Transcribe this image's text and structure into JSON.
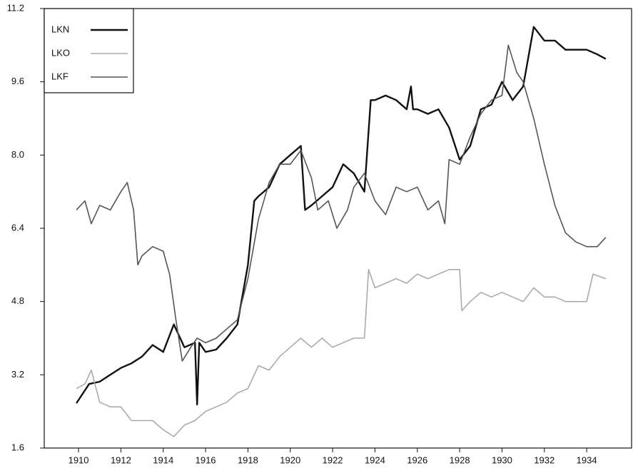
{
  "chart_data": {
    "type": "line",
    "xlim": [
      1908.38,
      1936.12
    ],
    "xticks": [
      1910,
      1912,
      1914,
      1916,
      1918,
      1920,
      1922,
      1924,
      1926,
      1928,
      1930,
      1932,
      1934
    ],
    "ylim": [
      1.6,
      11.2
    ],
    "yticks": [
      1.6,
      3.2,
      4.8,
      6.4,
      {
        "value": 8,
        "label": "8.0"
      },
      9.6,
      11.2
    ],
    "grid": false,
    "legend": "upper-left",
    "series": [
      {
        "name": "LKN",
        "color": "#111111",
        "x": [
          1909.9,
          1910.5,
          1911,
          1911.5,
          1912,
          1912.5,
          1913,
          1913.5,
          1914,
          1914.5,
          1915,
          1915.5,
          1915.6,
          1915.7,
          1916,
          1916.5,
          1917,
          1917.5,
          1918,
          1918.3,
          1918.5,
          1919,
          1919.5,
          1920,
          1920.5,
          1920.7,
          1921,
          1921.5,
          1922,
          1922.5,
          1923,
          1923.5,
          1923.8,
          1924,
          1924.5,
          1925,
          1925.5,
          1925.7,
          1925.8,
          1926,
          1926.5,
          1927,
          1927.5,
          1928,
          1928.5,
          1929,
          1929.5,
          1930,
          1930.5,
          1931,
          1931.5,
          1932,
          1932.5,
          1933,
          1933.5,
          1934,
          1934.5,
          1934.9
        ],
        "values": [
          2.58,
          3.0,
          3.05,
          3.2,
          3.35,
          3.45,
          3.6,
          3.85,
          3.7,
          4.3,
          3.8,
          3.9,
          2.55,
          3.9,
          3.7,
          3.75,
          4.0,
          4.3,
          5.6,
          7.0,
          7.1,
          7.3,
          7.8,
          8.0,
          8.2,
          6.8,
          6.9,
          7.1,
          7.3,
          7.8,
          7.6,
          7.2,
          9.2,
          9.2,
          9.3,
          9.2,
          9.0,
          9.5,
          9.0,
          9.0,
          8.9,
          9.0,
          8.6,
          7.9,
          8.2,
          9.0,
          9.1,
          9.6,
          9.2,
          9.5,
          10.8,
          10.5,
          10.5,
          10.3,
          10.3,
          10.3,
          10.2,
          10.1
        ]
      },
      {
        "name": "LKO",
        "color": "#aaaaaa",
        "x": [
          1909.9,
          1910.3,
          1910.6,
          1911,
          1911.5,
          1912,
          1912.5,
          1913,
          1913.5,
          1914,
          1914.5,
          1915,
          1915.5,
          1916,
          1916.5,
          1917,
          1917.5,
          1918,
          1918.5,
          1919,
          1919.5,
          1920,
          1920.5,
          1921,
          1921.5,
          1922,
          1922.5,
          1923,
          1923.5,
          1923.7,
          1924,
          1924.5,
          1925,
          1925.5,
          1926,
          1926.5,
          1927,
          1927.5,
          1928,
          1928.1,
          1928.5,
          1929,
          1929.5,
          1930,
          1930.5,
          1931,
          1931.5,
          1932,
          1932.5,
          1933,
          1933.5,
          1934,
          1934.3,
          1934.9
        ],
        "values": [
          2.9,
          3.0,
          3.3,
          2.6,
          2.5,
          2.5,
          2.2,
          2.2,
          2.2,
          2.0,
          1.85,
          2.1,
          2.2,
          2.4,
          2.5,
          2.6,
          2.8,
          2.9,
          3.4,
          3.3,
          3.6,
          3.8,
          4.0,
          3.8,
          4.0,
          3.8,
          3.9,
          4.0,
          4.0,
          5.5,
          5.1,
          5.2,
          5.3,
          5.2,
          5.4,
          5.3,
          5.4,
          5.5,
          5.5,
          4.6,
          4.8,
          5.0,
          4.9,
          5.0,
          4.9,
          4.8,
          5.1,
          4.9,
          4.9,
          4.8,
          4.8,
          4.8,
          5.4,
          5.3
        ]
      },
      {
        "name": "LKF",
        "color": "#555555",
        "x": [
          1909.9,
          1910.3,
          1910.6,
          1911,
          1911.5,
          1912,
          1912.3,
          1912.6,
          1912.8,
          1913,
          1913.5,
          1914,
          1914.3,
          1914.6,
          1914.9,
          1915.3,
          1915.6,
          1916,
          1916.5,
          1917,
          1917.5,
          1918,
          1918.5,
          1919,
          1919.5,
          1920,
          1920.5,
          1921,
          1921.3,
          1921.8,
          1922.2,
          1922.7,
          1923,
          1923.5,
          1924,
          1924.5,
          1925,
          1925.5,
          1926,
          1926.5,
          1927,
          1927.3,
          1927.5,
          1928,
          1928.5,
          1929,
          1929.5,
          1930,
          1930.3,
          1930.7,
          1931,
          1931.5,
          1932,
          1932.5,
          1933,
          1933.5,
          1934,
          1934.5,
          1934.9
        ],
        "values": [
          6.8,
          7.0,
          6.5,
          6.9,
          6.8,
          7.2,
          7.4,
          6.8,
          5.6,
          5.8,
          6.0,
          5.9,
          5.4,
          4.4,
          3.5,
          3.8,
          4.0,
          3.9,
          4.0,
          4.2,
          4.4,
          5.3,
          6.6,
          7.4,
          7.8,
          7.8,
          8.1,
          7.5,
          6.8,
          7.0,
          6.4,
          6.8,
          7.3,
          7.6,
          7.0,
          6.7,
          7.3,
          7.2,
          7.3,
          6.8,
          7.0,
          6.5,
          7.9,
          7.8,
          8.4,
          8.9,
          9.2,
          9.3,
          10.4,
          9.8,
          9.6,
          8.8,
          7.8,
          6.9,
          6.3,
          6.1,
          6.0,
          6.0,
          6.2
        ]
      }
    ]
  }
}
